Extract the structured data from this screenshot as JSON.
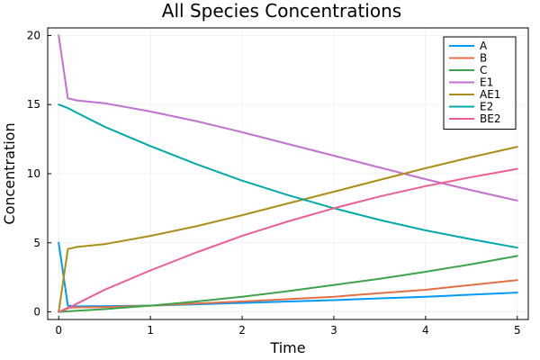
{
  "chart_data": {
    "type": "line",
    "title": "All Species Concentrations",
    "xlabel": "Time",
    "ylabel": "Concentration",
    "xlim": [
      -0.12,
      5.12
    ],
    "ylim": [
      -0.55,
      20.55
    ],
    "xticks": [
      0,
      1,
      2,
      3,
      4,
      5
    ],
    "yticks": [
      0,
      5,
      10,
      15,
      20
    ],
    "grid": true,
    "legend_position": "top-right",
    "x": [
      0,
      0.1,
      0.2,
      0.5,
      1,
      1.5,
      2,
      2.5,
      3,
      3.5,
      4,
      4.5,
      5
    ],
    "series": [
      {
        "name": "A",
        "color": "#009af9",
        "values": [
          5.0,
          0.45,
          0.4,
          0.42,
          0.45,
          0.55,
          0.65,
          0.75,
          0.85,
          0.98,
          1.1,
          1.25,
          1.4
        ]
      },
      {
        "name": "B",
        "color": "#e26f46",
        "values": [
          0.0,
          0.3,
          0.33,
          0.35,
          0.45,
          0.6,
          0.75,
          0.92,
          1.1,
          1.35,
          1.6,
          1.95,
          2.3
        ]
      },
      {
        "name": "C",
        "color": "#3da44d",
        "values": [
          0.0,
          0.04,
          0.08,
          0.2,
          0.45,
          0.75,
          1.1,
          1.5,
          1.95,
          2.4,
          2.9,
          3.45,
          4.05
        ]
      },
      {
        "name": "E1",
        "color": "#c271d2",
        "values": [
          20.0,
          15.45,
          15.3,
          15.1,
          14.5,
          13.8,
          13.0,
          12.15,
          11.3,
          10.45,
          9.6,
          8.8,
          8.05
        ]
      },
      {
        "name": "AE1",
        "color": "#ac8d18",
        "values": [
          0.0,
          4.55,
          4.7,
          4.9,
          5.5,
          6.2,
          7.0,
          7.85,
          8.7,
          9.55,
          10.4,
          11.2,
          11.95
        ]
      },
      {
        "name": "E2",
        "color": "#00a9ad",
        "values": [
          15.0,
          14.75,
          14.4,
          13.4,
          12.0,
          10.7,
          9.5,
          8.45,
          7.5,
          6.65,
          5.9,
          5.25,
          4.65
        ]
      },
      {
        "name": "BE2",
        "color": "#ed5d92",
        "values": [
          0.0,
          0.25,
          0.6,
          1.6,
          3.0,
          4.3,
          5.5,
          6.55,
          7.5,
          8.35,
          9.1,
          9.75,
          10.35
        ]
      }
    ]
  }
}
